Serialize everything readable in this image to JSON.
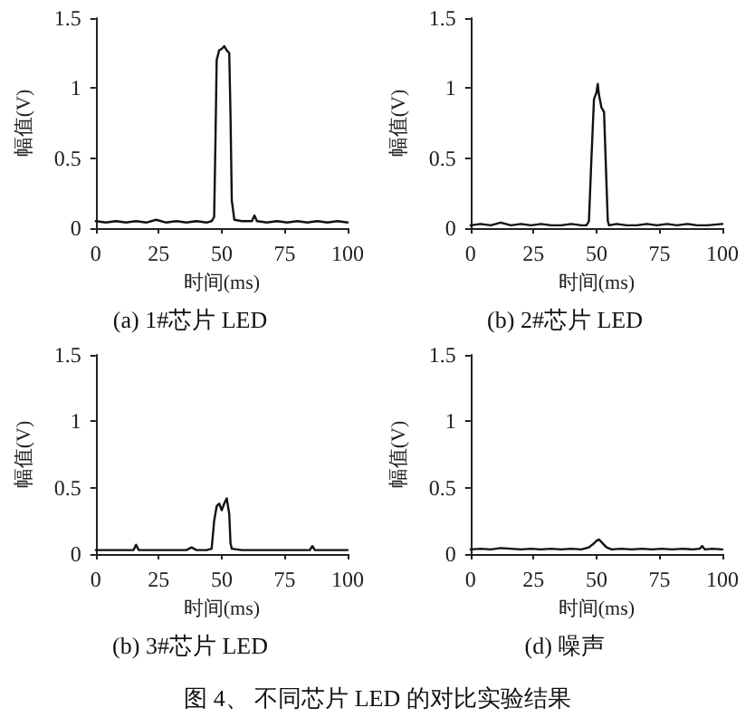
{
  "chart_data": [
    {
      "type": "line",
      "title": "(a) 1#芯片 LED",
      "xlabel": "时间(ms)",
      "ylabel": "幅值(V)",
      "xlim": [
        0,
        100
      ],
      "xticks": [
        0,
        25,
        50,
        75,
        100
      ],
      "ylim": [
        0,
        1.5
      ],
      "yticks": [
        0,
        0.5,
        1,
        1.5
      ],
      "marker": "none",
      "line_style": "solid",
      "series": [
        {
          "color": "#111111",
          "x": [
            0,
            4,
            8,
            12,
            16,
            20,
            24,
            28,
            32,
            36,
            40,
            44,
            46,
            47,
            47.5,
            48,
            49,
            50,
            51,
            52,
            53,
            53.5,
            54,
            55,
            58,
            62,
            63,
            64,
            68,
            72,
            76,
            80,
            84,
            88,
            92,
            96,
            100
          ],
          "values": [
            0.05,
            0.04,
            0.05,
            0.04,
            0.05,
            0.04,
            0.06,
            0.04,
            0.05,
            0.04,
            0.05,
            0.04,
            0.05,
            0.08,
            0.6,
            1.2,
            1.27,
            1.28,
            1.3,
            1.27,
            1.25,
            0.8,
            0.2,
            0.06,
            0.05,
            0.05,
            0.09,
            0.05,
            0.04,
            0.05,
            0.04,
            0.05,
            0.04,
            0.05,
            0.04,
            0.05,
            0.04
          ]
        }
      ]
    },
    {
      "type": "line",
      "title": "(b) 2#芯片 LED",
      "xlabel": "时间(ms)",
      "ylabel": "幅值(V)",
      "xlim": [
        0,
        100
      ],
      "xticks": [
        0,
        25,
        50,
        75,
        100
      ],
      "ylim": [
        0,
        1.5
      ],
      "yticks": [
        0,
        0.5,
        1,
        1.5
      ],
      "marker": "none",
      "line_style": "solid",
      "series": [
        {
          "color": "#111111",
          "x": [
            0,
            4,
            8,
            12,
            16,
            20,
            24,
            28,
            32,
            36,
            40,
            44,
            46,
            47,
            48,
            49,
            50,
            50.5,
            51,
            52,
            53,
            54,
            54.5,
            55,
            58,
            62,
            66,
            70,
            74,
            78,
            82,
            86,
            90,
            94,
            100
          ],
          "values": [
            0.02,
            0.03,
            0.02,
            0.04,
            0.02,
            0.03,
            0.02,
            0.03,
            0.02,
            0.02,
            0.03,
            0.02,
            0.02,
            0.05,
            0.5,
            0.92,
            0.97,
            1.03,
            0.95,
            0.86,
            0.83,
            0.3,
            0.05,
            0.02,
            0.03,
            0.02,
            0.02,
            0.03,
            0.02,
            0.03,
            0.02,
            0.03,
            0.02,
            0.02,
            0.03
          ]
        }
      ]
    },
    {
      "type": "line",
      "title": "(b) 3#芯片 LED",
      "xlabel": "时间(ms)",
      "ylabel": "幅值(V)",
      "xlim": [
        0,
        100
      ],
      "xticks": [
        0,
        25,
        50,
        75,
        100
      ],
      "ylim": [
        0,
        1.5
      ],
      "yticks": [
        0,
        0.5,
        1,
        1.5
      ],
      "marker": "none",
      "line_style": "solid",
      "series": [
        {
          "color": "#111111",
          "x": [
            0,
            4,
            8,
            12,
            15,
            16,
            17,
            20,
            24,
            28,
            32,
            36,
            38,
            40,
            44,
            46,
            47,
            48,
            49,
            50,
            51,
            52,
            53,
            53.5,
            54,
            58,
            62,
            66,
            70,
            74,
            78,
            82,
            85,
            86,
            87,
            90,
            94,
            100
          ],
          "values": [
            0.03,
            0.03,
            0.03,
            0.03,
            0.03,
            0.07,
            0.03,
            0.03,
            0.03,
            0.03,
            0.03,
            0.03,
            0.05,
            0.03,
            0.03,
            0.04,
            0.25,
            0.36,
            0.38,
            0.33,
            0.38,
            0.42,
            0.3,
            0.08,
            0.04,
            0.03,
            0.03,
            0.03,
            0.03,
            0.03,
            0.03,
            0.03,
            0.03,
            0.06,
            0.03,
            0.03,
            0.03,
            0.03
          ]
        }
      ]
    },
    {
      "type": "line",
      "title": "(d) 噪声",
      "xlabel": "时间(ms)",
      "ylabel": "幅值(V)",
      "xlim": [
        0,
        100
      ],
      "xticks": [
        0,
        25,
        50,
        75,
        100
      ],
      "ylim": [
        0,
        1.5
      ],
      "yticks": [
        0,
        0.5,
        1,
        1.5
      ],
      "marker": "none",
      "line_style": "solid",
      "series": [
        {
          "color": "#111111",
          "x": [
            0,
            4,
            8,
            12,
            16,
            20,
            24,
            28,
            32,
            36,
            40,
            44,
            47,
            49,
            50,
            51,
            52,
            54,
            56,
            60,
            64,
            68,
            72,
            76,
            80,
            84,
            88,
            91,
            92,
            93,
            96,
            100
          ],
          "values": [
            0.035,
            0.04,
            0.035,
            0.045,
            0.04,
            0.035,
            0.04,
            0.035,
            0.04,
            0.035,
            0.04,
            0.035,
            0.05,
            0.08,
            0.1,
            0.11,
            0.09,
            0.05,
            0.035,
            0.04,
            0.035,
            0.04,
            0.035,
            0.04,
            0.035,
            0.04,
            0.035,
            0.04,
            0.06,
            0.035,
            0.04,
            0.035
          ]
        }
      ]
    },
    {
      "type": "other",
      "title": "图 4、 不同芯片 LED 的对比实验结果"
    }
  ]
}
